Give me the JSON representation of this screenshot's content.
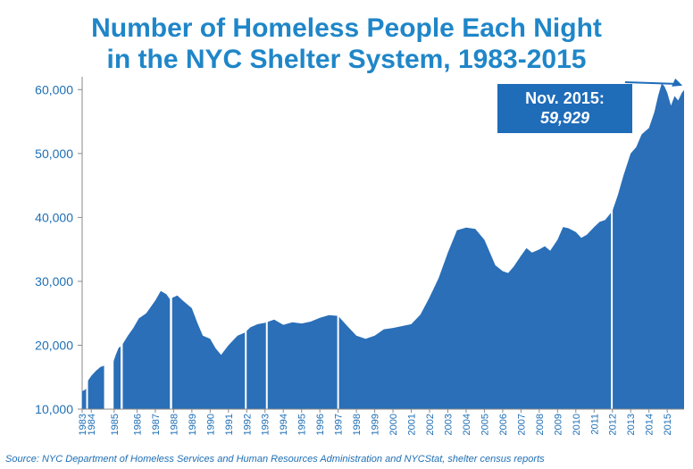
{
  "header": {
    "title_line1": "Number of Homeless People Each Night",
    "title_line2": "in the NYC Shelter System, 1983-2015"
  },
  "callout": {
    "line1": "Nov. 2015:",
    "line2": "59,929"
  },
  "source": "Source:  NYC Department of Homeless Services and Human Resources Administration and NYCStat, shelter census reports",
  "colors": {
    "area": "#2a6fb8",
    "title": "#1f86c8",
    "axis_text": "#1f6fb5",
    "callout": "#1f6cb9"
  },
  "chart_data": {
    "type": "area",
    "title": "Number of Homeless People Each Night in the NYC Shelter System, 1983-2015",
    "xlabel": "",
    "ylabel": "",
    "ylim": [
      10000,
      62000
    ],
    "yticks": [
      10000,
      20000,
      30000,
      40000,
      50000,
      60000
    ],
    "ytick_labels": [
      "10,000",
      "20,000",
      "30,000",
      "40,000",
      "50,000",
      "60,000"
    ],
    "xlim": [
      1983.0,
      2015.92
    ],
    "xtick_labels": [
      "1983",
      "1984",
      "1985",
      "1986",
      "1987",
      "1988",
      "1989",
      "1990",
      "1991",
      "1992",
      "1993",
      "1994",
      "1995",
      "1996",
      "1997",
      "1998",
      "1999",
      "2000",
      "2001",
      "2002",
      "2003",
      "2004",
      "2005",
      "2006",
      "2007",
      "2008",
      "2009",
      "2010",
      "2011",
      "2012",
      "2013",
      "2014",
      "2015"
    ],
    "xtick_positions": [
      1983.0,
      1983.5,
      1984.75,
      1986.0,
      1987.0,
      1988.0,
      1989.0,
      1990.0,
      1991.0,
      1992.0,
      1993.0,
      1994.0,
      1995.0,
      1996.0,
      1997.0,
      1998.0,
      1999.0,
      2000.0,
      2001.0,
      2002.0,
      2003.0,
      2004.0,
      2005.0,
      2006.0,
      2007.0,
      2008.0,
      2009.0,
      2010.0,
      2011.0,
      2012.0,
      2013.0,
      2014.0,
      2015.0
    ],
    "gaps": [
      [
        1983.22,
        1983.32
      ],
      [
        1984.2,
        1984.72
      ],
      [
        1985.1,
        1985.22
      ],
      [
        1987.8,
        1987.92
      ],
      [
        1991.9,
        1991.95
      ],
      [
        1993.05,
        1993.1
      ],
      [
        1996.95,
        1997.0
      ],
      [
        2011.92,
        2011.97
      ]
    ],
    "series": [
      {
        "x": [
          1983.0,
          1983.2,
          1983.33,
          1983.5,
          1983.75,
          1984.0,
          1984.2,
          1984.72,
          1984.85,
          1985.0,
          1985.1,
          1985.22,
          1985.5,
          1985.8,
          1986.1,
          1986.5,
          1987.0,
          1987.3,
          1987.6,
          1987.8,
          1987.92,
          1988.2,
          1988.5,
          1989.0,
          1989.3,
          1989.6,
          1990.0,
          1990.3,
          1990.6,
          1991.0,
          1991.5,
          1991.9,
          1992.2,
          1992.6,
          1993.0,
          1993.5,
          1994.0,
          1994.5,
          1995.0,
          1995.5,
          1996.0,
          1996.5,
          1997.0,
          1997.5,
          1998.0,
          1998.5,
          1999.0,
          1999.5,
          2000.0,
          2000.5,
          2001.0,
          2001.5,
          2002.0,
          2002.5,
          2003.0,
          2003.5,
          2004.0,
          2004.5,
          2005.0,
          2005.3,
          2005.6,
          2006.0,
          2006.3,
          2006.6,
          2007.0,
          2007.3,
          2007.6,
          2008.0,
          2008.3,
          2008.6,
          2009.0,
          2009.3,
          2009.6,
          2010.0,
          2010.3,
          2010.6,
          2011.0,
          2011.3,
          2011.6,
          2012.0,
          2012.3,
          2012.6,
          2013.0,
          2013.3,
          2013.6,
          2014.0,
          2014.3,
          2014.5,
          2014.7,
          2014.85,
          2015.0,
          2015.2,
          2015.4,
          2015.6,
          2015.8,
          2015.92
        ],
        "y": [
          12800,
          13100,
          14500,
          15200,
          16000,
          16600,
          16800,
          17500,
          18600,
          19600,
          19800,
          20200,
          21500,
          22700,
          24200,
          25000,
          27000,
          28500,
          28000,
          27200,
          27400,
          27800,
          27000,
          25800,
          23500,
          21500,
          21000,
          19500,
          18500,
          20000,
          21500,
          22000,
          22800,
          23300,
          23500,
          24000,
          23200,
          23600,
          23400,
          23700,
          24300,
          24700,
          24600,
          23000,
          21500,
          21000,
          21500,
          22500,
          22700,
          23000,
          23300,
          24800,
          27500,
          30500,
          34500,
          38000,
          38400,
          38200,
          36500,
          34500,
          32500,
          31600,
          31300,
          32300,
          34000,
          35200,
          34500,
          35000,
          35500,
          34800,
          36500,
          38500,
          38300,
          37700,
          36800,
          37300,
          38500,
          39300,
          39600,
          41000,
          43500,
          46500,
          50000,
          51000,
          53000,
          54000,
          56500,
          59000,
          61000,
          60500,
          59500,
          57500,
          59000,
          58300,
          59500,
          59929
        ]
      }
    ],
    "annotations": [
      {
        "text": "Nov. 2015: 59,929",
        "x": 2015.83,
        "y": 59929
      }
    ],
    "legend": "none",
    "grid": false
  }
}
